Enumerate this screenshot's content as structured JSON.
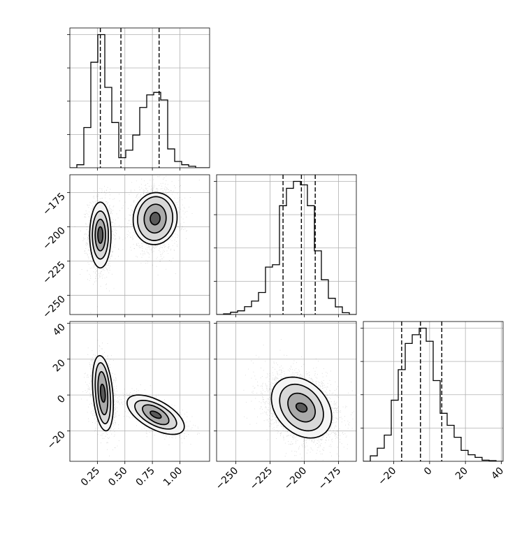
{
  "chart_data": {
    "type": "corner",
    "title": "",
    "grid": true,
    "variables": [
      {
        "range": [
          0.0,
          1.27
        ],
        "ticks": [
          0.25,
          0.5,
          0.75,
          1.0
        ],
        "tick_labels": [
          "0.25",
          "0.50",
          "0.75",
          "1.00"
        ]
      },
      {
        "range": [
          -264,
          -162
        ],
        "ticks": [
          -250,
          -225,
          -200,
          -175
        ],
        "tick_labels": [
          "−250",
          "−225",
          "−200",
          "−175"
        ]
      },
      {
        "range": [
          -37,
          41
        ],
        "ticks": [
          -20,
          0,
          20,
          40
        ],
        "tick_labels": [
          "−20",
          "0",
          "20",
          "40"
        ]
      }
    ],
    "quantiles": [
      [
        0.277,
        0.464,
        0.811
      ],
      [
        -215.5,
        -202.1,
        -192.0
      ],
      [
        -15.6,
        -5.1,
        6.8
      ]
    ],
    "histograms": [
      {
        "bin_width": 0.0635,
        "bin_starts": [
          0.0,
          0.0635,
          0.127,
          0.1905,
          0.254,
          0.3175,
          0.381,
          0.4445,
          0.508,
          0.5715,
          0.635,
          0.6985,
          0.762,
          0.8255,
          0.889,
          0.9525,
          1.016,
          1.0795,
          1.143,
          1.2065
        ],
        "counts": [
          0,
          12,
          160,
          420,
          530,
          320,
          180,
          40,
          70,
          130,
          240,
          290,
          300,
          270,
          75,
          25,
          12,
          6,
          0,
          0
        ]
      },
      {
        "bin_width": 5.1,
        "bin_starts": [
          -264.0,
          -258.9,
          -253.8,
          -248.7,
          -243.6,
          -238.5,
          -233.4,
          -228.3,
          -223.2,
          -218.1,
          -213.0,
          -207.9,
          -202.8,
          -197.7,
          -192.6,
          -187.5,
          -182.4,
          -177.3,
          -172.2,
          -167.1
        ],
        "counts": [
          0,
          3,
          10,
          16,
          34,
          58,
          95,
          205,
          215,
          470,
          545,
          575,
          560,
          470,
          275,
          150,
          70,
          33,
          8,
          0
        ]
      },
      {
        "bin_width": 3.9,
        "bin_starts": [
          -37.0,
          -33.1,
          -29.2,
          -25.3,
          -21.4,
          -17.5,
          -13.6,
          -9.7,
          -5.8,
          -1.9,
          2.0,
          5.9,
          9.8,
          13.7,
          17.6,
          21.5,
          25.4,
          29.3,
          33.2,
          37.1
        ],
        "counts": [
          0,
          25,
          60,
          120,
          280,
          420,
          540,
          580,
          610,
          550,
          370,
          220,
          165,
          110,
          50,
          30,
          18,
          5,
          3,
          0
        ]
      }
    ],
    "pairs": [
      {
        "x_var": 0,
        "y_var": 1,
        "clusters": [
          {
            "mean": [
              0.277,
              -206
            ],
            "sd": [
              0.058,
              13.5
            ],
            "rho": 0.0,
            "weight": 0.5
          },
          {
            "mean": [
              0.775,
              -194
            ],
            "sd": [
              0.11,
              12
            ],
            "rho": 0.05,
            "weight": 0.5
          }
        ],
        "contours": [
          {
            "center": [
              0.277,
              -206
            ],
            "radii": [
              [
                0.023,
                6
              ],
              [
                0.047,
                11.5
              ],
              [
                0.073,
                17.5
              ],
              [
                0.097,
                24
              ]
            ],
            "rho": 0.0
          },
          {
            "center": [
              0.775,
              -194
            ],
            "radii": [
              [
                0.045,
                4.5
              ],
              [
                0.1,
                10.5
              ],
              [
                0.16,
                16
              ],
              [
                0.2,
                19
              ]
            ],
            "rho": 0.05
          }
        ]
      },
      {
        "x_var": 0,
        "y_var": 2,
        "clusters": [
          {
            "mean": [
              0.3,
              1
            ],
            "sd": [
              0.055,
              9.5
            ],
            "rho": -0.3,
            "weight": 0.5
          },
          {
            "mean": [
              0.78,
              -11
            ],
            "sd": [
              0.12,
              5
            ],
            "rho": -0.6,
            "weight": 0.5
          }
        ],
        "contours": [
          {
            "center": [
              0.3,
              1
            ],
            "radii": [
              [
                0.022,
                5
              ],
              [
                0.045,
                12
              ],
              [
                0.07,
                17
              ],
              [
                0.095,
                21
              ]
            ],
            "rho": -0.3
          },
          {
            "center": [
              0.78,
              -11
            ],
            "radii": [
              [
                0.05,
                2
              ],
              [
                0.12,
                5.5
              ],
              [
                0.19,
                8
              ],
              [
                0.26,
                11
              ]
            ],
            "rho": -0.6
          }
        ]
      },
      {
        "x_var": 1,
        "y_var": 2,
        "clusters": [
          {
            "mean": [
              -202,
              -7
            ],
            "sd": [
              13,
              9.5
            ],
            "rho": -0.3,
            "weight": 1.0
          }
        ],
        "contours": [
          {
            "center": [
              -202,
              -7
            ],
            "radii": [
              [
                4,
                2.5
              ],
              [
                10,
                8
              ],
              [
                16,
                13
              ],
              [
                22,
                17
              ]
            ],
            "rho": -0.3
          }
        ]
      }
    ]
  }
}
